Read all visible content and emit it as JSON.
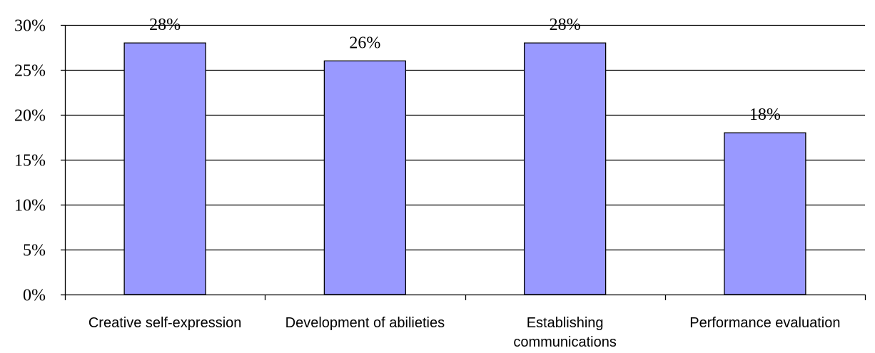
{
  "chart_data": {
    "type": "bar",
    "title": "",
    "xlabel": "",
    "ylabel": "",
    "categories": [
      [
        "Creative self-expression"
      ],
      [
        "Development of abilieties"
      ],
      [
        "Establishing",
        "communications"
      ],
      [
        "Performance evaluation"
      ]
    ],
    "values": [
      28,
      26,
      28,
      18
    ],
    "data_labels": [
      "28%",
      "26%",
      "28%",
      "18%"
    ],
    "ylim": [
      0,
      30
    ],
    "yticks": [
      0,
      5,
      10,
      15,
      20,
      25,
      30
    ],
    "ytick_labels": [
      "0%",
      "5%",
      "10%",
      "15%",
      "20%",
      "25%",
      "30%"
    ],
    "grid": true,
    "legend": "none",
    "colors": {
      "bar_fill": "#9999ff",
      "bar_stroke": "#000000",
      "grid": "#000000",
      "axis": "#000000",
      "background": "#ffffff"
    }
  }
}
